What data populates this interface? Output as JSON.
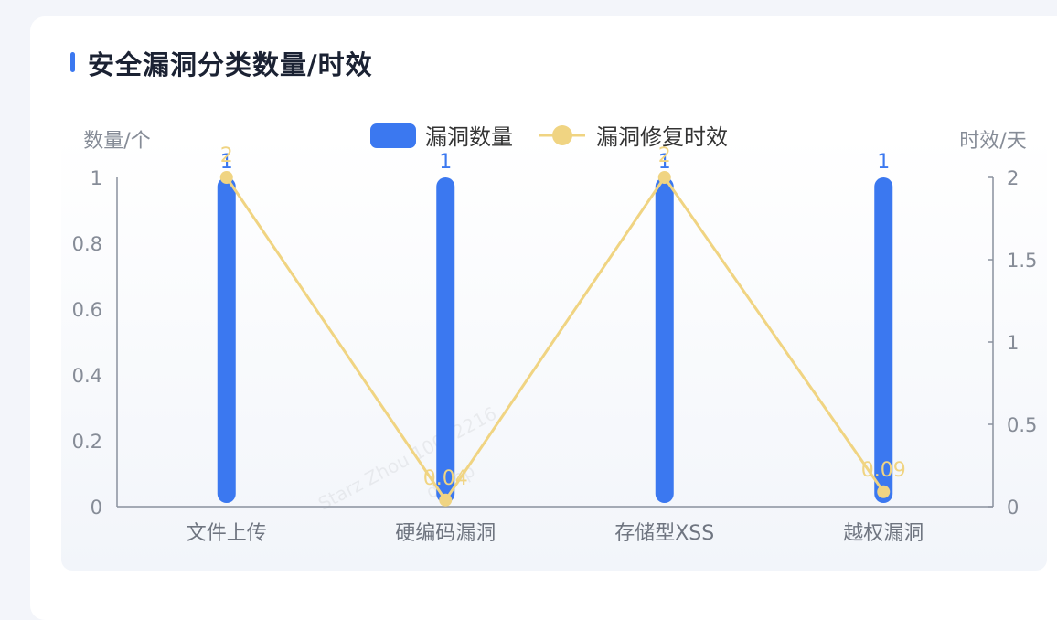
{
  "panel": {
    "title": "安全漏洞分类数量/时效",
    "accent_color": "#3b78f0"
  },
  "watermark": {
    "line1": "Starz Zhou 10002216",
    "line2": "domp"
  },
  "chart_data": {
    "type": "bar",
    "categories": [
      "文件上传",
      "硬编码漏洞",
      "存储型XSS",
      "越权漏洞"
    ],
    "series": [
      {
        "name": "漏洞数量",
        "type": "bar",
        "axis": "left",
        "values": [
          1,
          1,
          1,
          1
        ],
        "color": "#3b78f0"
      },
      {
        "name": "漏洞修复时效",
        "type": "line",
        "axis": "right",
        "values": [
          2,
          0.04,
          2,
          0.09
        ],
        "color": "#f0d482"
      }
    ],
    "y_left": {
      "label": "数量/个",
      "ylim": [
        0,
        1
      ],
      "ticks": [
        0,
        0.2,
        0.4,
        0.6,
        0.8,
        1
      ]
    },
    "y_right": {
      "label": "时效/天",
      "ylim": [
        0,
        2
      ],
      "ticks": [
        0,
        0.5,
        1,
        1.5,
        2
      ]
    },
    "grid": false,
    "legend_position": "top"
  }
}
